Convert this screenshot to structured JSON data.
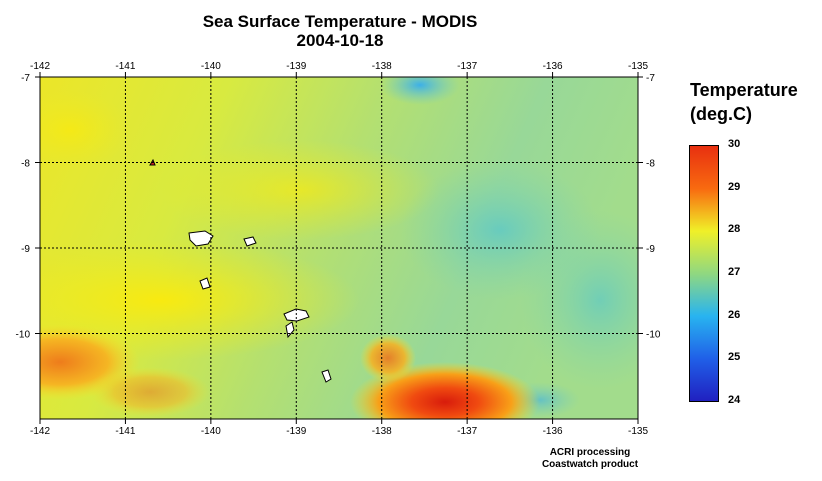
{
  "title": "Sea Surface Temperature - MODIS",
  "subtitle": "2004-10-18",
  "legend": {
    "title_line1": "Temperature",
    "title_line2": "(deg.C)",
    "ticks": [
      "30",
      "29",
      "28",
      "27",
      "26",
      "25",
      "24"
    ],
    "range": [
      24,
      30
    ]
  },
  "credits": {
    "line1": "ACRI processing",
    "line2": "Coastwatch product"
  },
  "chart_data": {
    "type": "heatmap",
    "title": "Sea Surface Temperature - MODIS",
    "subtitle": "2004-10-18",
    "x_axis": {
      "label": "",
      "range": [
        -142,
        -135
      ],
      "ticks": [
        "-142",
        "-141",
        "-140",
        "-139",
        "-138",
        "-137",
        "-136",
        "-135"
      ]
    },
    "y_axis": {
      "label": "",
      "range": [
        -11,
        -7
      ],
      "ticks": [
        "-7",
        "-8",
        "-9",
        "-10"
      ]
    },
    "grid": true,
    "colorbar": {
      "label": "Temperature (deg.C)",
      "min": 24,
      "max": 30
    },
    "colors": {
      "warm": "#e83010",
      "mid": "#f0f028",
      "cool": "#5cc8c8",
      "cold": "#2020c0"
    }
  }
}
